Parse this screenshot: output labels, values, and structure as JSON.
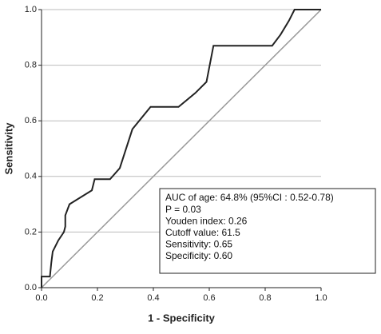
{
  "chart_data": {
    "type": "line",
    "x_label": "1 - Specificity",
    "y_label": "Sensitivity",
    "x": [
      0,
      0,
      0.03,
      0.035,
      0.04,
      0.06,
      0.08,
      0.085,
      0.085,
      0.1,
      0.18,
      0.19,
      0.245,
      0.28,
      0.325,
      0.39,
      0.49,
      0.55,
      0.59,
      0.615,
      0.825,
      0.855,
      0.885,
      0.905,
      1
    ],
    "series": [
      {
        "color": "#222222",
        "values": [
          0,
          0.04,
          0.04,
          0.09,
          0.13,
          0.17,
          0.2,
          0.22,
          0.26,
          0.3,
          0.35,
          0.39,
          0.39,
          0.43,
          0.57,
          0.65,
          0.65,
          0.7,
          0.74,
          0.87,
          0.87,
          0.91,
          0.96,
          1,
          1
        ]
      }
    ],
    "reference_color": "#999999",
    "xlim": [
      0,
      1
    ],
    "ylim": [
      0,
      1
    ],
    "xticks": [
      {
        "value": 0,
        "label": "0.0"
      },
      0.2,
      0.4,
      0.6,
      0.8,
      {
        "value": 1,
        "label": "1.0"
      }
    ],
    "yticks": [
      {
        "value": 0,
        "label": "0.0"
      },
      0.2,
      0.4,
      0.6,
      0.8,
      {
        "value": 1,
        "label": "1.0"
      }
    ],
    "grid": true,
    "annotations": [
      "AUC of age: 64.8% (95%CI : 0.52-0.78)",
      "P = 0.03",
      "Youden index: 0.26",
      "Cutoff value: 61.5",
      "Sensitivity: 0.65",
      "Specificity: 0.60"
    ]
  }
}
